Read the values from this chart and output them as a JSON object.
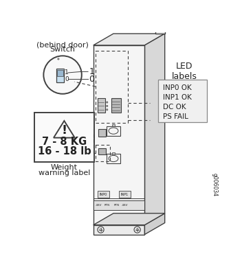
{
  "bg_color": "#ffffff",
  "line_color": "#404040",
  "text_color": "#222222",
  "switch_title_line1": "Switch",
  "switch_title_line2": "(behind door)",
  "weight_line1": "7 - 8 KG",
  "weight_line2": "16 - 18 lb",
  "weight_cap1": "Weight",
  "weight_cap2": "warning label",
  "led_title": "LED\nlabels",
  "led_labels": [
    "INP0 OK",
    "INP1 OK",
    "DC OK",
    "PS FAIL"
  ],
  "figure_id": "g006034",
  "inp_labels": [
    "INP0",
    "INP1"
  ],
  "term_labels": [
    "-48V",
    "RTN",
    "RTN",
    "-48V"
  ],
  "body_face_color": "#f5f5f5",
  "body_side_color": "#d8d8d8",
  "body_top_color": "#e8e8e8",
  "led_box_color": "#f0f0f0"
}
